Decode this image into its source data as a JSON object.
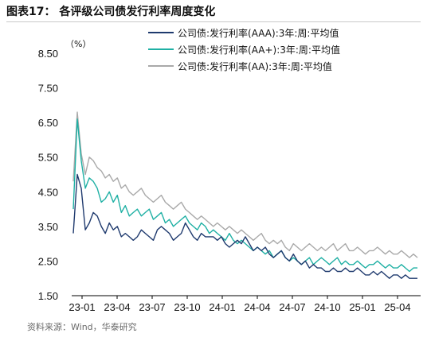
{
  "title": "图表17：  各评级公司债发行利率周度变化",
  "source": "资料来源：Wind，华泰研究",
  "chart_data": {
    "type": "line",
    "unit_label": "（%）",
    "ylim": [
      1.5,
      8.5
    ],
    "yticks": [
      "8.50",
      "7.50",
      "6.50",
      "5.50",
      "4.50",
      "3.50",
      "2.50",
      "1.50"
    ],
    "yticks_values": [
      8.5,
      7.5,
      6.5,
      5.5,
      4.5,
      3.5,
      2.5,
      1.5
    ],
    "xticks": [
      "23-01",
      "23-04",
      "23-07",
      "23-10",
      "24-01",
      "24-04",
      "24-07",
      "24-10",
      "25-01",
      "25-04"
    ],
    "legend_position": "top-right",
    "colors": {
      "AAA": "#1f3a6e",
      "AA+": "#1fb0a4",
      "AA": "#a9a9a9"
    },
    "series": [
      {
        "name": "公司债:发行利率(AAA):3年:周:平均值",
        "color": "#1f3a6e",
        "values": [
          3.3,
          5.0,
          4.6,
          3.4,
          3.6,
          3.9,
          3.8,
          3.5,
          3.3,
          3.6,
          3.4,
          3.5,
          3.2,
          3.3,
          3.2,
          3.1,
          3.2,
          3.4,
          3.3,
          3.2,
          3.1,
          3.4,
          3.5,
          3.4,
          3.3,
          3.1,
          3.2,
          3.3,
          3.6,
          3.4,
          3.2,
          3.1,
          3.3,
          3.2,
          3.2,
          3.2,
          3.1,
          3.2,
          3.0,
          2.9,
          3.0,
          3.1,
          3.0,
          3.2,
          3.0,
          2.8,
          2.9,
          2.8,
          2.9,
          2.7,
          2.6,
          2.7,
          2.8,
          2.6,
          2.5,
          2.7,
          2.5,
          2.4,
          2.5,
          2.3,
          2.4,
          2.3,
          2.3,
          2.2,
          2.2,
          2.3,
          2.2,
          2.2,
          2.3,
          2.2,
          2.2,
          2.3,
          2.2,
          2.1,
          2.1,
          2.2,
          2.1,
          2.2,
          2.1,
          2.0,
          2.1,
          2.1,
          2.0,
          2.1,
          2.0,
          2.0,
          2.0
        ]
      },
      {
        "name": "公司债:发行利率(AA+):3年:周:平均值",
        "color": "#1fb0a4",
        "values": [
          4.0,
          6.6,
          5.4,
          4.6,
          4.9,
          4.8,
          4.6,
          4.2,
          4.3,
          4.5,
          4.2,
          4.4,
          3.9,
          4.1,
          3.8,
          3.9,
          4.0,
          3.8,
          3.9,
          4.0,
          3.7,
          3.8,
          3.9,
          3.6,
          3.7,
          3.5,
          3.6,
          3.7,
          3.8,
          3.6,
          3.5,
          3.4,
          3.6,
          3.5,
          3.3,
          3.4,
          3.3,
          3.2,
          3.1,
          3.3,
          3.1,
          3.0,
          3.1,
          3.0,
          2.9,
          2.8,
          2.9,
          2.8,
          2.7,
          2.8,
          2.6,
          2.7,
          2.8,
          2.6,
          2.5,
          2.6,
          2.5,
          2.4,
          2.5,
          2.6,
          2.4,
          2.5,
          2.6,
          2.5,
          2.4,
          2.5,
          2.6,
          2.4,
          2.5,
          2.4,
          2.4,
          2.5,
          2.4,
          2.3,
          2.4,
          2.4,
          2.5,
          2.4,
          2.3,
          2.4,
          2.3,
          2.3,
          2.4,
          2.3,
          2.2,
          2.3,
          2.3
        ]
      },
      {
        "name": "公司债:发行利率(AA):3年:周:平均值",
        "color": "#a9a9a9",
        "values": [
          4.8,
          6.8,
          5.6,
          5.0,
          5.5,
          5.4,
          5.2,
          5.1,
          4.9,
          5.0,
          4.8,
          4.9,
          4.6,
          4.7,
          4.5,
          4.4,
          4.5,
          4.6,
          4.4,
          4.3,
          4.2,
          4.3,
          4.4,
          4.2,
          4.1,
          4.0,
          4.1,
          4.2,
          4.0,
          3.9,
          3.8,
          3.7,
          3.8,
          3.7,
          3.6,
          3.5,
          3.6,
          3.5,
          3.4,
          3.5,
          3.4,
          3.3,
          3.4,
          3.3,
          3.2,
          3.1,
          3.2,
          3.3,
          3.1,
          3.0,
          3.1,
          3.0,
          3.1,
          2.9,
          2.8,
          3.0,
          2.9,
          2.8,
          2.9,
          3.0,
          2.9,
          2.8,
          2.9,
          2.8,
          2.9,
          3.0,
          2.8,
          2.9,
          3.0,
          2.8,
          2.8,
          2.9,
          2.8,
          2.7,
          2.8,
          2.8,
          2.9,
          2.8,
          2.7,
          2.8,
          2.7,
          2.7,
          2.8,
          2.7,
          2.6,
          2.7,
          2.6
        ]
      }
    ]
  }
}
